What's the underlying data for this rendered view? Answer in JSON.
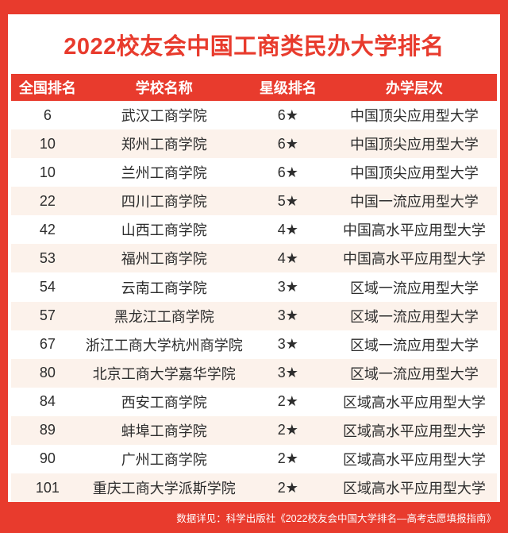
{
  "colors": {
    "accent_red": "#e83b2d",
    "row_alt": "#fcf2eb",
    "text": "#2d2d2d",
    "white": "#ffffff"
  },
  "chart_data": {
    "type": "table",
    "title": "2022校友会中国工商类民办大学排名",
    "columns": [
      "全国排名",
      "学校名称",
      "星级排名",
      "办学层次"
    ],
    "rows": [
      {
        "rank": "6",
        "school": "武汉工商学院",
        "stars": "6★",
        "level": "中国顶尖应用型大学"
      },
      {
        "rank": "10",
        "school": "郑州工商学院",
        "stars": "6★",
        "level": "中国顶尖应用型大学"
      },
      {
        "rank": "10",
        "school": "兰州工商学院",
        "stars": "6★",
        "level": "中国顶尖应用型大学"
      },
      {
        "rank": "22",
        "school": "四川工商学院",
        "stars": "5★",
        "level": "中国一流应用型大学"
      },
      {
        "rank": "42",
        "school": "山西工商学院",
        "stars": "4★",
        "level": "中国高水平应用型大学"
      },
      {
        "rank": "53",
        "school": "福州工商学院",
        "stars": "4★",
        "level": "中国高水平应用型大学"
      },
      {
        "rank": "54",
        "school": "云南工商学院",
        "stars": "3★",
        "level": "区域一流应用型大学"
      },
      {
        "rank": "57",
        "school": "黑龙江工商学院",
        "stars": "3★",
        "level": "区域一流应用型大学"
      },
      {
        "rank": "67",
        "school": "浙江工商大学杭州商学院",
        "stars": "3★",
        "level": "区域一流应用型大学"
      },
      {
        "rank": "80",
        "school": "北京工商大学嘉华学院",
        "stars": "3★",
        "level": "区域一流应用型大学"
      },
      {
        "rank": "84",
        "school": "西安工商学院",
        "stars": "2★",
        "level": "区域高水平应用型大学"
      },
      {
        "rank": "89",
        "school": "蚌埠工商学院",
        "stars": "2★",
        "level": "区域高水平应用型大学"
      },
      {
        "rank": "90",
        "school": "广州工商学院",
        "stars": "2★",
        "level": "区域高水平应用型大学"
      },
      {
        "rank": "101",
        "school": "重庆工商大学派斯学院",
        "stars": "2★",
        "level": "区域高水平应用型大学"
      }
    ]
  },
  "footer": {
    "source": "数据详见：科学出版社《2022校友会中国大学排名—高考志愿填报指南》"
  }
}
